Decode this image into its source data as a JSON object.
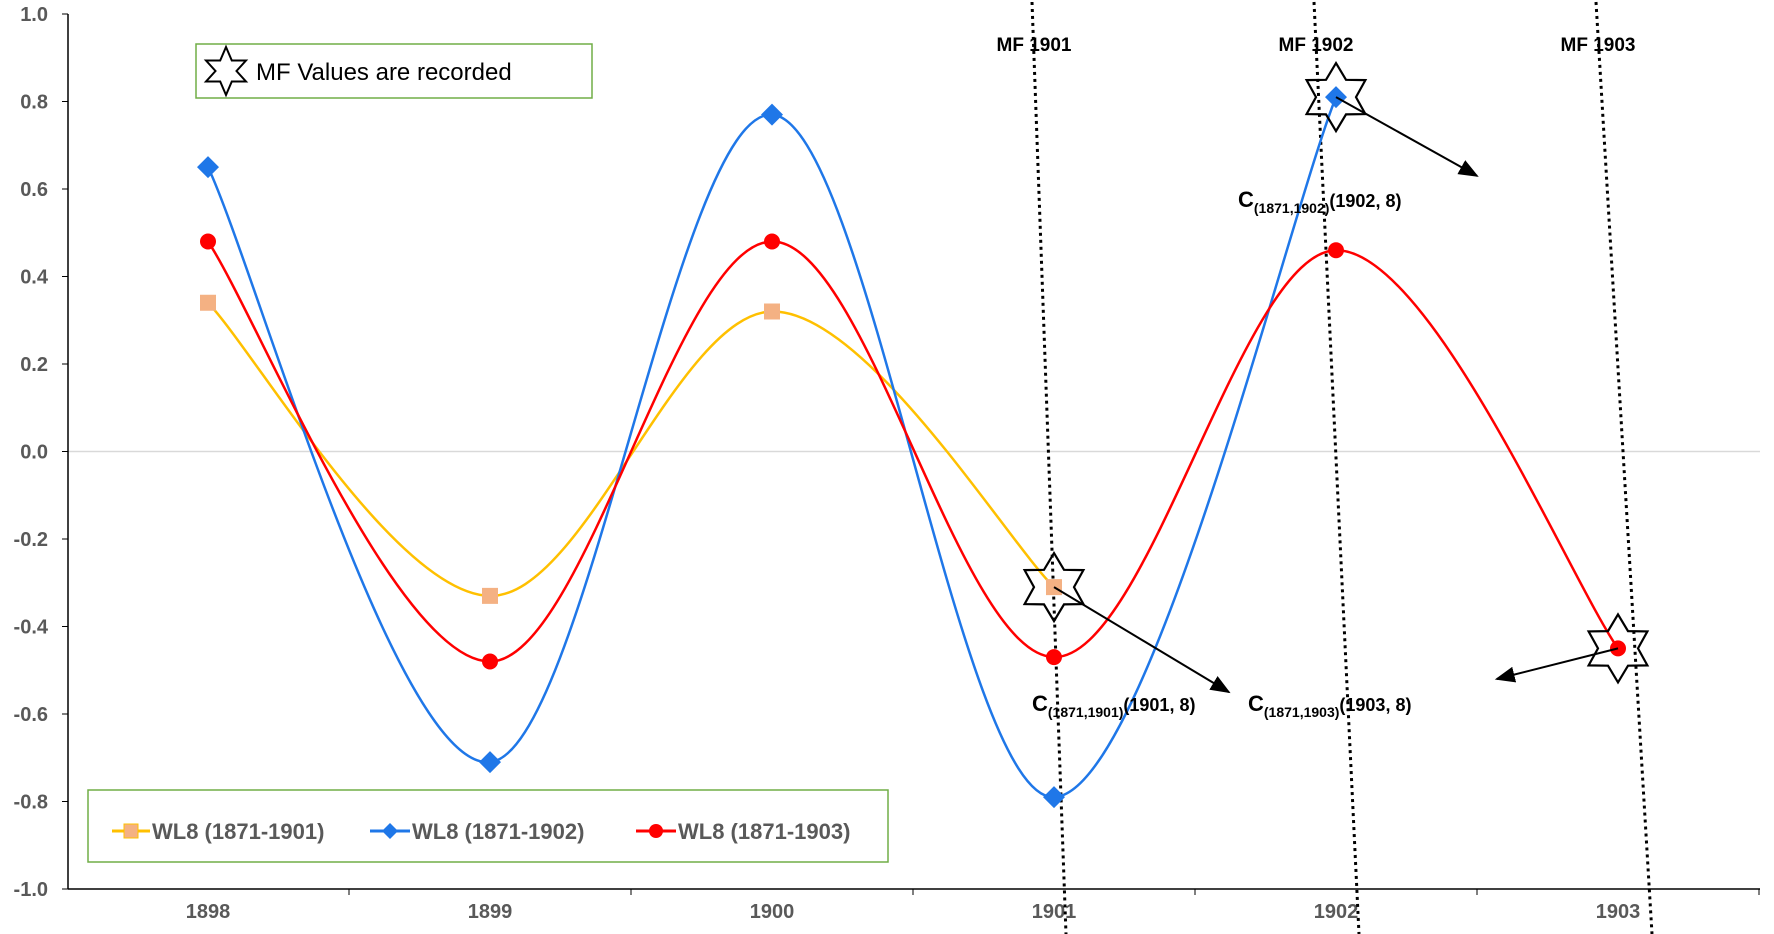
{
  "chart_data": {
    "type": "line",
    "title": "",
    "xlabel": "",
    "ylabel": "",
    "categories": [
      "1898",
      "1899",
      "1900",
      "1901",
      "1902",
      "1903"
    ],
    "xlim": [
      1898,
      1903.45
    ],
    "ylim": [
      -1.0,
      1.0
    ],
    "y_ticks": [
      1.0,
      0.8,
      0.6,
      0.4,
      0.2,
      0.0,
      -0.2,
      -0.4,
      -0.6,
      -0.8,
      -1.0
    ],
    "y_tick_labels": [
      "1.0",
      "0.8",
      "0.6",
      "0.4",
      "0.2",
      "0.0",
      "-0.2",
      "-0.4",
      "-0.6",
      "-0.8",
      "-1.0"
    ],
    "series": [
      {
        "name": "WL8 (1871-1901)",
        "color": "#FFC000",
        "marker_color": "#F4B183",
        "marker": "square",
        "x": [
          1898,
          1899,
          1900,
          1901
        ],
        "values": [
          0.34,
          -0.33,
          0.32,
          -0.31
        ]
      },
      {
        "name": "WL8 (1871-1902)",
        "color": "#1F77E8",
        "marker_color": "#1F77E8",
        "marker": "diamond",
        "x": [
          1898,
          1899,
          1900,
          1901,
          1902
        ],
        "values": [
          0.65,
          -0.71,
          0.77,
          -0.79,
          0.81
        ]
      },
      {
        "name": "WL8 (1871-1903)",
        "color": "#FF0000",
        "marker_color": "#FF0000",
        "marker": "circle",
        "x": [
          1898,
          1899,
          1900,
          1901,
          1902,
          1903
        ],
        "values": [
          0.48,
          -0.48,
          0.48,
          -0.47,
          0.46,
          -0.45
        ]
      }
    ],
    "mf_lines": [
      {
        "label": "MF 1901",
        "x": 1901
      },
      {
        "label": "MF 1902",
        "x": 1902
      },
      {
        "label": "MF 1903",
        "x": 1903
      }
    ],
    "star_markers": [
      {
        "x": 1901,
        "y": -0.31
      },
      {
        "x": 1902,
        "y": 0.81
      },
      {
        "x": 1903,
        "y": -0.45
      }
    ],
    "annotations": [
      {
        "main": "C",
        "sub": "(1871,1901)",
        "tail": "(1901, 8)",
        "from": [
          1901,
          -0.31
        ],
        "to": [
          1901.62,
          -0.55
        ]
      },
      {
        "main": "C",
        "sub": "(1871,1902)",
        "tail": "(1902, 8)",
        "from": [
          1902,
          0.81
        ],
        "to": [
          1902.5,
          0.63
        ]
      },
      {
        "main": "C",
        "sub": "(1871,1903)",
        "tail": "(1903, 8)",
        "from": [
          1903,
          -0.45
        ],
        "to": [
          1902.57,
          -0.52
        ]
      }
    ],
    "note": "MF Values are recorded",
    "legend_position": "bottom-left",
    "grid": false
  }
}
